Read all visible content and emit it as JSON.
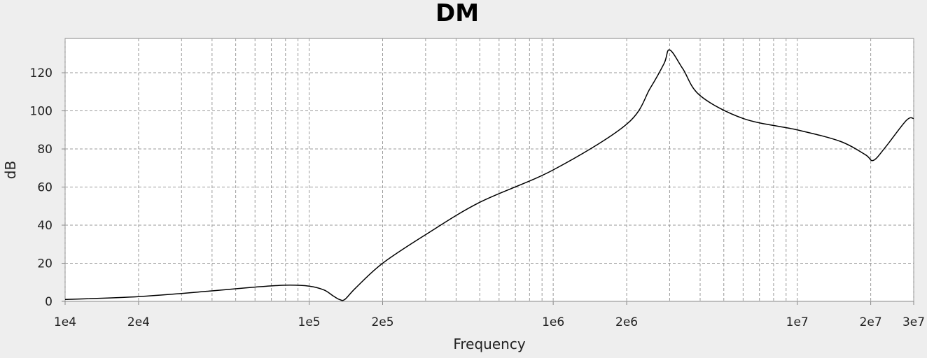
{
  "chart_data": {
    "type": "line",
    "title": "DM",
    "xlabel": "Frequency",
    "ylabel": "dB",
    "x_scale": "log",
    "xlim": [
      10000,
      30000000
    ],
    "ylim": [
      0,
      138
    ],
    "grid": true,
    "x_ticks": [
      {
        "value": 10000,
        "label": "1e4"
      },
      {
        "value": 20000,
        "label": "2e4"
      },
      {
        "value": 100000,
        "label": "1e5"
      },
      {
        "value": 200000,
        "label": "2e5"
      },
      {
        "value": 1000000,
        "label": "1e6"
      },
      {
        "value": 2000000,
        "label": "2e6"
      },
      {
        "value": 10000000,
        "label": "1e7"
      },
      {
        "value": 20000000,
        "label": "2e7"
      },
      {
        "value": 30000000,
        "label": "3e7"
      }
    ],
    "y_ticks": [
      {
        "value": 0,
        "label": "0"
      },
      {
        "value": 20,
        "label": "20"
      },
      {
        "value": 40,
        "label": "40"
      },
      {
        "value": 60,
        "label": "60"
      },
      {
        "value": 80,
        "label": "80"
      },
      {
        "value": 100,
        "label": "100"
      },
      {
        "value": 120,
        "label": "120"
      }
    ],
    "series": [
      {
        "color": "#000000",
        "x": [
          10000,
          20000,
          40000,
          60000,
          80000,
          100000,
          115000,
          125000,
          133000,
          140000,
          155000,
          200000,
          300000,
          500000,
          1000000,
          2000000,
          2500000,
          2850000,
          3000000,
          3400000,
          4000000,
          6000000,
          10000000,
          15000000,
          19000000,
          20500000,
          23000000,
          28000000,
          30000000
        ],
        "y": [
          1,
          2.5,
          5.5,
          7.5,
          8.5,
          8,
          6,
          3,
          1,
          1,
          7,
          20,
          35,
          52,
          69,
          93,
          112,
          125,
          132,
          122,
          108,
          96,
          90,
          84,
          77,
          74,
          81,
          95,
          96
        ]
      }
    ]
  }
}
